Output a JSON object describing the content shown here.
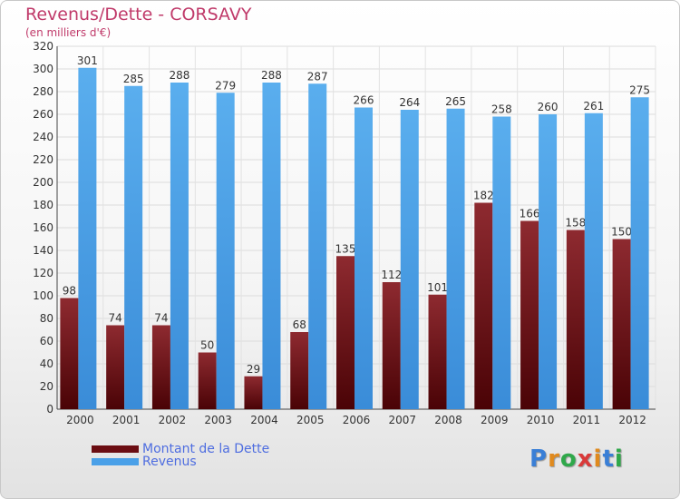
{
  "title": "Revenus/Dette - CORSAVY",
  "subtitle": "(en milliers d'€)",
  "brand": {
    "logo_text": "Proxiti"
  },
  "legend": [
    {
      "label": "Montant de la Dette",
      "color": "#6b0d12"
    },
    {
      "label": "Revenus",
      "color": "#4aa0e8"
    }
  ],
  "chart_data": {
    "type": "bar",
    "categories": [
      "2000",
      "2001",
      "2002",
      "2003",
      "2004",
      "2005",
      "2006",
      "2007",
      "2008",
      "2009",
      "2010",
      "2011",
      "2012"
    ],
    "series": [
      {
        "name": "Montant de la Dette",
        "color": "#6b0d12",
        "values": [
          98,
          74,
          74,
          50,
          29,
          68,
          135,
          112,
          101,
          182,
          166,
          158,
          150
        ]
      },
      {
        "name": "Revenus",
        "color": "#4aa0e8",
        "values": [
          301,
          285,
          288,
          279,
          288,
          287,
          266,
          264,
          265,
          258,
          260,
          261,
          275
        ]
      }
    ],
    "ylim": [
      0,
      320
    ],
    "yticks": [
      0,
      20,
      40,
      60,
      80,
      100,
      120,
      140,
      160,
      180,
      200,
      220,
      240,
      260,
      280,
      300,
      320
    ],
    "grid": true,
    "legend_position": "bottom-left"
  }
}
